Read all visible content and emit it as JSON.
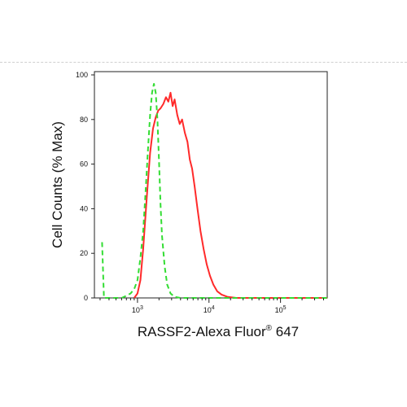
{
  "chart_data": {
    "type": "line",
    "xlabel_main": "RASSF2-Alexa Fluor",
    "xlabel_sup": "®",
    "xlabel_tail": " 647",
    "ylabel": "Cell Counts (% Max)",
    "x_scale": "log",
    "xlim": [
      250,
      450000
    ],
    "ylim": [
      0,
      100
    ],
    "y_ticks": [
      0,
      20,
      40,
      60,
      80,
      100
    ],
    "x_ticks": [
      {
        "value": 1000,
        "base": "10",
        "exp": "3"
      },
      {
        "value": 10000,
        "base": "10",
        "exp": "4"
      },
      {
        "value": 100000,
        "base": "10",
        "exp": "5"
      }
    ],
    "grid": false,
    "series": [
      {
        "color": "#ff2a2a",
        "style": "solid",
        "x": [
          900,
          1000,
          1100,
          1200,
          1350,
          1500,
          1650,
          1800,
          1950,
          2100,
          2300,
          2500,
          2700,
          2900,
          3100,
          3300,
          3600,
          3900,
          4200,
          4600,
          5000,
          5400,
          5800,
          6300,
          6900,
          7600,
          8400,
          9300,
          10300,
          11500,
          13000,
          15000,
          18000,
          24000,
          40000,
          100000,
          450000
        ],
        "y": [
          0,
          2,
          8,
          22,
          45,
          65,
          76,
          81,
          84,
          85,
          87,
          90,
          88,
          92,
          86,
          89,
          82,
          78,
          80,
          74,
          70,
          62,
          58,
          50,
          40,
          30,
          22,
          15,
          10,
          6,
          3,
          1.5,
          0.5,
          0,
          0,
          0,
          0
        ]
      },
      {
        "color": "#33dd33",
        "style": "dashed",
        "x": [
          320,
          340,
          400,
          500,
          600,
          700,
          800,
          900,
          1000,
          1100,
          1200,
          1300,
          1400,
          1500,
          1600,
          1700,
          1800,
          1900,
          2000,
          2100,
          2200,
          2400,
          2600,
          2900,
          3300,
          4000,
          6000,
          450000
        ],
        "y": [
          25,
          0,
          0,
          0,
          0,
          1,
          2,
          4,
          8,
          18,
          30,
          48,
          66,
          82,
          92,
          96,
          92,
          80,
          62,
          42,
          28,
          14,
          6,
          2,
          0.5,
          0,
          0,
          0
        ]
      }
    ]
  }
}
